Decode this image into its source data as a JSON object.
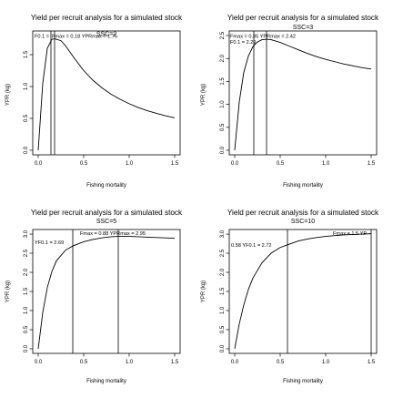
{
  "chart_data": [
    {
      "type": "line",
      "title": "Yield per recruit analysis for a simulated stock",
      "subtitle": "SSC=2",
      "xlabel": "Fishing mortality",
      "ylabel": "YPR (kg)",
      "xlim": [
        0,
        1.5
      ],
      "ylim": [
        0,
        1.8
      ],
      "xticks": [
        "0.0",
        "0.5",
        "1.0",
        "1.5"
      ],
      "yticks": [
        "0.0",
        "0.5",
        "1.0",
        "1.5"
      ],
      "ytick_values": [
        0,
        0.5,
        1.0,
        1.5
      ],
      "x": [
        0,
        0.05,
        0.1,
        0.15,
        0.18,
        0.25,
        0.3,
        0.4,
        0.5,
        0.6,
        0.7,
        0.8,
        0.9,
        1.0,
        1.1,
        1.2,
        1.3,
        1.4,
        1.5
      ],
      "y": [
        0,
        1.05,
        1.6,
        1.74,
        1.75,
        1.72,
        1.64,
        1.44,
        1.25,
        1.1,
        0.98,
        0.88,
        0.8,
        0.73,
        0.67,
        0.62,
        0.58,
        0.54,
        0.51
      ],
      "vlines": [
        0.14,
        0.18
      ],
      "annotations": [
        "F0.1 = ",
        "Fmax = 0.18 YPRmax = 1.75"
      ]
    },
    {
      "type": "line",
      "title": "Yield per recruit analysis for a simulated stock",
      "subtitle": "SSC=3",
      "xlabel": "Fishing mortality",
      "ylabel": "YPR (kg)",
      "xlim": [
        0,
        1.5
      ],
      "ylim": [
        0,
        2.5
      ],
      "xticks": [
        "0.0",
        "0.5",
        "1.0",
        "1.5"
      ],
      "yticks": [
        "0.0",
        "0.5",
        "1.0",
        "1.5",
        "2.0",
        "2.5"
      ],
      "ytick_values": [
        0,
        0.5,
        1.0,
        1.5,
        2.0,
        2.5
      ],
      "x": [
        0,
        0.05,
        0.1,
        0.15,
        0.2,
        0.25,
        0.3,
        0.35,
        0.4,
        0.5,
        0.6,
        0.7,
        0.8,
        0.9,
        1.0,
        1.1,
        1.2,
        1.3,
        1.4,
        1.5
      ],
      "y": [
        0,
        1.05,
        1.7,
        2.05,
        2.26,
        2.36,
        2.41,
        2.42,
        2.41,
        2.35,
        2.27,
        2.19,
        2.11,
        2.04,
        1.98,
        1.93,
        1.88,
        1.84,
        1.8,
        1.77
      ],
      "vlines": [
        0.21,
        0.35
      ],
      "annotations": [
        "Fmax = 0.35 YPRmax = 2.42",
        "F0.1 = 2.29"
      ]
    },
    {
      "type": "line",
      "title": "Yield per recruit analysis for a simulated stock",
      "subtitle": "SSC=5",
      "xlabel": "Fishing mortality",
      "ylabel": "YPR (kg)",
      "xlim": [
        0,
        1.5
      ],
      "ylim": [
        0,
        3.0
      ],
      "xticks": [
        "0.0",
        "0.5",
        "1.0",
        "1.5"
      ],
      "yticks": [
        "0.0",
        "0.5",
        "1.0",
        "1.5",
        "2.0",
        "2.5",
        "3.0"
      ],
      "ytick_values": [
        0,
        0.5,
        1.0,
        1.5,
        2.0,
        2.5,
        3.0
      ],
      "x": [
        0,
        0.05,
        0.1,
        0.15,
        0.2,
        0.3,
        0.38,
        0.5,
        0.6,
        0.7,
        0.8,
        0.88,
        1.0,
        1.1,
        1.2,
        1.3,
        1.4,
        1.5
      ],
      "y": [
        0,
        0.95,
        1.6,
        2.02,
        2.3,
        2.58,
        2.69,
        2.8,
        2.86,
        2.9,
        2.93,
        2.94,
        2.94,
        2.93,
        2.92,
        2.91,
        2.9,
        2.89
      ],
      "vlines": [
        0.38,
        0.88
      ],
      "annotations": [
        "Fmax = 0.88 YPRmax = 2.95",
        "YF0.1 = 2.69"
      ]
    },
    {
      "type": "line",
      "title": "Yield per recruit analysis for a simulated stock",
      "subtitle": "SSC=10",
      "xlabel": "Fishing mortality",
      "ylabel": "YPR (kg)",
      "xlim": [
        0,
        1.5
      ],
      "ylim": [
        0,
        3.0
      ],
      "xticks": [
        "0.0",
        "0.5",
        "1.0",
        "1.5"
      ],
      "yticks": [
        "0.0",
        "0.5",
        "1.0",
        "1.5",
        "2.0",
        "2.5",
        "3.0"
      ],
      "ytick_values": [
        0,
        0.5,
        1.0,
        1.5,
        2.0,
        2.5,
        3.0
      ],
      "x": [
        0,
        0.05,
        0.1,
        0.15,
        0.2,
        0.3,
        0.4,
        0.5,
        0.58,
        0.7,
        0.8,
        0.9,
        1.0,
        1.1,
        1.2,
        1.3,
        1.4,
        1.5
      ],
      "y": [
        0,
        0.65,
        1.15,
        1.55,
        1.85,
        2.25,
        2.5,
        2.65,
        2.72,
        2.82,
        2.87,
        2.91,
        2.94,
        2.96,
        2.98,
        2.99,
        3.0,
        3.01
      ],
      "vlines": [
        0.58,
        1.5
      ],
      "annotations": [
        "Fmax = 1.5 YP",
        "0.58 YF0.1 = 2.72"
      ]
    }
  ]
}
